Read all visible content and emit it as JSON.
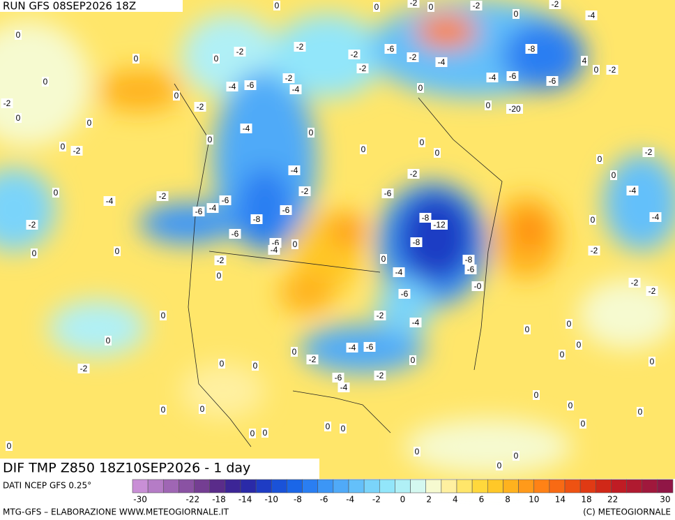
{
  "header": {
    "run": "RUN GFS 08SEP2026 18Z",
    "field": "DIF TMP Z850 18Z10SEP2026 - 1 day"
  },
  "footer": {
    "source": "DATI NCEP GFS 0.25°",
    "credit": "MTG-GFS – ELABORAZIONE WWW.METEOGIORNALE.IT",
    "copyright": "(C) METEOGIORNALE"
  },
  "colorbar": {
    "colors": [
      "#c98fd6",
      "#b57cc6",
      "#9f66b4",
      "#8a52a3",
      "#743e92",
      "#5a2c8a",
      "#3c2596",
      "#2a2aa8",
      "#1e3cc4",
      "#1a52d8",
      "#1a66e8",
      "#2a7ef2",
      "#3c96f6",
      "#50aaf8",
      "#64c0fa",
      "#7ad4fa",
      "#92e6fa",
      "#b0f0f6",
      "#d4f8f0",
      "#f6fad0",
      "#fff0a0",
      "#ffe66a",
      "#ffd83c",
      "#ffc828",
      "#ffb21e",
      "#ff9a1a",
      "#ff8216",
      "#f86a14",
      "#ee5212",
      "#e03a14",
      "#d02818",
      "#c01c24",
      "#b01a30",
      "#a0183c",
      "#901646"
    ],
    "labels": [
      -30,
      -22,
      -18,
      -14,
      -10,
      -8,
      -6,
      -4,
      -2,
      0,
      2,
      4,
      6,
      8,
      10,
      14,
      18,
      22,
      30
    ]
  },
  "contour_labels": [
    "0",
    "0",
    "-2",
    "0",
    "-2",
    "0",
    "-2",
    "-4",
    "0",
    "0",
    "0",
    "-2",
    "-2",
    "-2",
    "-6",
    "-2",
    "-4",
    "-8",
    "4",
    "0",
    "-2",
    "-2",
    "0",
    "0",
    "-4",
    "-6",
    "-2",
    "-4",
    "-4",
    "-6",
    "-6",
    "0",
    "-2",
    "-2",
    "0",
    "-20",
    "0",
    "0",
    "-4",
    "0",
    "0",
    "0",
    "-2",
    "0",
    "0",
    "0",
    "-2",
    "0",
    "0",
    "-4",
    "-2",
    "0",
    "-2",
    "-4",
    "-6",
    "-2",
    "-6",
    "-4",
    "-6",
    "-4",
    "-6",
    "-8",
    "-8",
    "-12",
    "-4",
    "0",
    "-2",
    "-6",
    "-6",
    "-4",
    "0",
    "-8",
    "-2",
    "0",
    "0",
    "-2",
    "0",
    "-8",
    "-6",
    "-4",
    "0",
    "-0",
    "-2",
    "-2",
    "-6",
    "0",
    "-2",
    "-4",
    "0",
    "0",
    "0",
    "0",
    "0",
    "-4",
    "-6",
    "0",
    "-2",
    "0",
    "0",
    "0",
    "-2",
    "0",
    "-6",
    "-2",
    "-4",
    "0",
    "0",
    "0",
    "0",
    "0",
    "0",
    "0",
    "0",
    "0",
    "0",
    "0",
    "0",
    "0",
    "0",
    "0"
  ]
}
